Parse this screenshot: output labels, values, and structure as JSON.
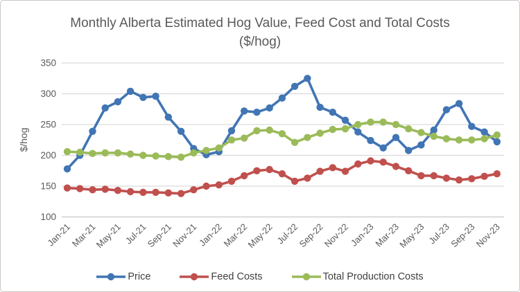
{
  "chart": {
    "title": "Monthly Alberta Estimated Hog Value, Feed Cost and Total Costs ($/hog)",
    "y_axis_title": "$/hog"
  },
  "chart_data": {
    "type": "line",
    "title": "Monthly Alberta Estimated Hog Value, Feed Cost and Total Costs ($/hog)",
    "xlabel": "",
    "ylabel": "$/hog",
    "ylim": [
      100,
      350
    ],
    "y_ticks": [
      350,
      300,
      250,
      200,
      150,
      100
    ],
    "x_tick_step": 2,
    "grid": "horizontal",
    "legend_position": "bottom",
    "categories": [
      "Jan-21",
      "Feb-21",
      "Mar-21",
      "Apr-21",
      "May-21",
      "Jun-21",
      "Jul-21",
      "Aug-21",
      "Sep-21",
      "Oct-21",
      "Nov-21",
      "Dec-21",
      "Jan-22",
      "Feb-22",
      "Mar-22",
      "Apr-22",
      "May-22",
      "Jun-22",
      "Jul-22",
      "Aug-22",
      "Sep-22",
      "Oct-22",
      "Nov-22",
      "Dec-22",
      "Jan-23",
      "Feb-23",
      "Mar-23",
      "Apr-23",
      "May-23",
      "Jun-23",
      "Jul-23",
      "Aug-23",
      "Sep-23",
      "Oct-23",
      "Nov-23"
    ],
    "x_tick_labels": [
      "Jan-21",
      "Mar-21",
      "May-21",
      "Jul-21",
      "Sep-21",
      "Nov-21",
      "Jan-22",
      "Mar-22",
      "May-22",
      "Jul-22",
      "Sep-22",
      "Nov-22",
      "Jan-23",
      "Mar-23",
      "May-23",
      "Jul-23",
      "Sep-23",
      "Nov-23"
    ],
    "series": [
      {
        "name": "Price",
        "color": "#4175b4",
        "values": [
          178,
          200,
          239,
          277,
          287,
          304,
          294,
          296,
          262,
          239,
          211,
          201,
          206,
          240,
          272,
          270,
          277,
          293,
          312,
          325,
          278,
          270,
          257,
          238,
          224,
          212,
          229,
          208,
          217,
          241,
          274,
          284,
          247,
          238,
          222
        ]
      },
      {
        "name": "Feed Costs",
        "color": "#c0504d",
        "values": [
          147,
          146,
          144,
          145,
          143,
          141,
          140,
          140,
          139,
          138,
          144,
          150,
          152,
          158,
          167,
          175,
          177,
          170,
          158,
          163,
          174,
          180,
          174,
          186,
          191,
          189,
          182,
          175,
          167,
          167,
          163,
          160,
          162,
          166,
          170
        ]
      },
      {
        "name": "Total Production Costs",
        "color": "#9bbb59",
        "values": [
          206,
          205,
          203,
          204,
          204,
          202,
          200,
          199,
          198,
          197,
          204,
          208,
          212,
          225,
          228,
          240,
          241,
          235,
          221,
          229,
          236,
          242,
          243,
          250,
          254,
          254,
          250,
          243,
          237,
          231,
          227,
          225,
          225,
          227,
          233
        ]
      }
    ],
    "style": {
      "grid_color": "#d9d9d9",
      "axis_color": "#c6c6c6",
      "tick_label_color": "#595959",
      "marker_radius": 5.2,
      "line_width": 3.6
    }
  }
}
